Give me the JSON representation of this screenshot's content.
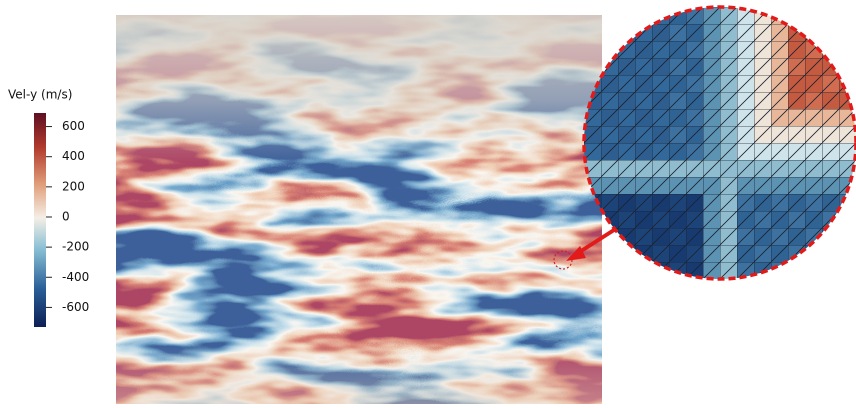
{
  "colorbar": {
    "label": "Vel-y (m/s)",
    "lim": [
      -730,
      690
    ],
    "ticks": [
      600,
      400,
      200,
      0,
      -200,
      -400,
      -600
    ]
  }
}
